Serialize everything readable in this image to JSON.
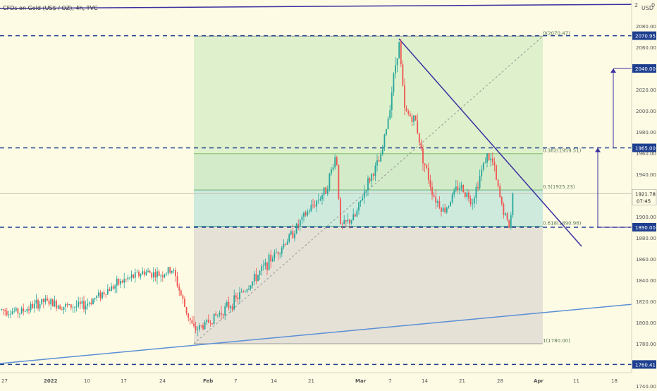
{
  "header": {
    "symbol_title": "CFDs on Gold (US$ / OZ), 4h, TVC"
  },
  "scale_corner": {
    "label": "USD",
    "top_tick": "2",
    "top_tick2": "0"
  },
  "price_axis": {
    "ticks": [
      2080,
      2060,
      2040,
      2020,
      2000,
      1980,
      1960,
      1940,
      1920,
      1900,
      1880,
      1860,
      1840,
      1820,
      1800,
      1780,
      1760,
      1740
    ],
    "tick_labels": [
      "2080.00",
      "2060.00",
      "2040.00",
      "2020.00",
      "2000.00",
      "1980.00",
      "1960.00",
      "1940.00",
      "1920.00",
      "1900.00",
      "1880.00",
      "1860.00",
      "1840.00",
      "1820.00",
      "1800.00",
      "1780.00",
      "1760.00",
      "1740.00"
    ],
    "level_badges": [
      {
        "label": "2070.95",
        "value": 2070.95
      },
      {
        "label": "2040.00",
        "value": 2040.0
      },
      {
        "label": "1965.00",
        "value": 1965.0
      },
      {
        "label": "1890.00",
        "value": 1890.0
      },
      {
        "label": "1760.41",
        "value": 1760.41
      }
    ],
    "last_price": {
      "label": "1921.78",
      "value": 1921.78,
      "countdown": "07:45"
    }
  },
  "time_axis": {
    "labels": [
      {
        "label": "27",
        "bold": false
      },
      {
        "label": "2022",
        "bold": true
      },
      {
        "label": "10",
        "bold": false
      },
      {
        "label": "17",
        "bold": false
      },
      {
        "label": "24",
        "bold": false
      },
      {
        "label": "Feb",
        "bold": true
      },
      {
        "label": "7",
        "bold": false
      },
      {
        "label": "14",
        "bold": false
      },
      {
        "label": "21",
        "bold": false
      },
      {
        "label": "Mar",
        "bold": true
      },
      {
        "label": "7",
        "bold": false
      },
      {
        "label": "14",
        "bold": false
      },
      {
        "label": "21",
        "bold": false
      },
      {
        "label": "28",
        "bold": false
      },
      {
        "label": "Apr",
        "bold": true
      },
      {
        "label": "11",
        "bold": false
      },
      {
        "label": "18",
        "bold": false
      }
    ]
  },
  "fib_labels": [
    {
      "label": "0(2070.47)",
      "value": 2070.47
    },
    {
      "label": "0.382(1959.51)",
      "value": 1959.51
    },
    {
      "label": "0.5(1925.23)",
      "value": 1925.23
    },
    {
      "label": "0.618(1890.96)",
      "value": 1890.96
    },
    {
      "label": "1(1780.00)",
      "value": 1780.0
    }
  ],
  "colors": {
    "background": "#fdfbe4",
    "up_candle": "#26a69a",
    "down_candle": "#ef5350",
    "trendline": "#3b2fa0",
    "support_line": "#5b8fd6",
    "level_badge": "#1e3f8f",
    "fib_zone_top": "#d8efc8",
    "fib_zone_mid": "#cde8c4",
    "fib_zone_teal": "#c4e6dc",
    "fib_zone_grey": "#e0dcd4"
  },
  "chart_data": {
    "type": "candlestick",
    "title": "CFDs on Gold (US$ / OZ), 4h, TVC",
    "ylim": [
      1740,
      2090
    ],
    "y_scale": "linear",
    "grid": false,
    "price_path_keypoints": [
      [
        "27",
        1812
      ],
      [
        "2022",
        1820
      ],
      [
        "10",
        1816
      ],
      [
        "17",
        1838
      ],
      [
        "24",
        1845
      ],
      [
        "Jan 28",
        1793
      ],
      [
        "Feb",
        1797
      ],
      [
        "7",
        1820
      ],
      [
        "14",
        1860
      ],
      [
        "21",
        1905
      ],
      [
        "Feb 24",
        1960
      ],
      [
        "Feb 25",
        1890
      ],
      [
        "Mar",
        1930
      ],
      [
        "7",
        1995
      ],
      [
        "Mar 8",
        2065
      ],
      [
        "Mar 9",
        2000
      ],
      [
        "14",
        1960
      ],
      [
        "Mar 16",
        1910
      ],
      [
        "21",
        1930
      ],
      [
        "Mar 24",
        1958
      ],
      [
        "28",
        1890
      ],
      [
        "Mar 30",
        1921.78
      ]
    ],
    "horizontal_levels": [
      2070.95,
      2040.0,
      1965.0,
      1890.0,
      1760.41
    ],
    "fibonacci": {
      "from": 2070.47,
      "to": 1780.0,
      "levels": {
        "0": 2070.47,
        "0.382": 1959.51,
        "0.5": 1925.23,
        "0.618": 1890.96,
        "1": 1780.0
      }
    },
    "last_price": 1921.78
  }
}
